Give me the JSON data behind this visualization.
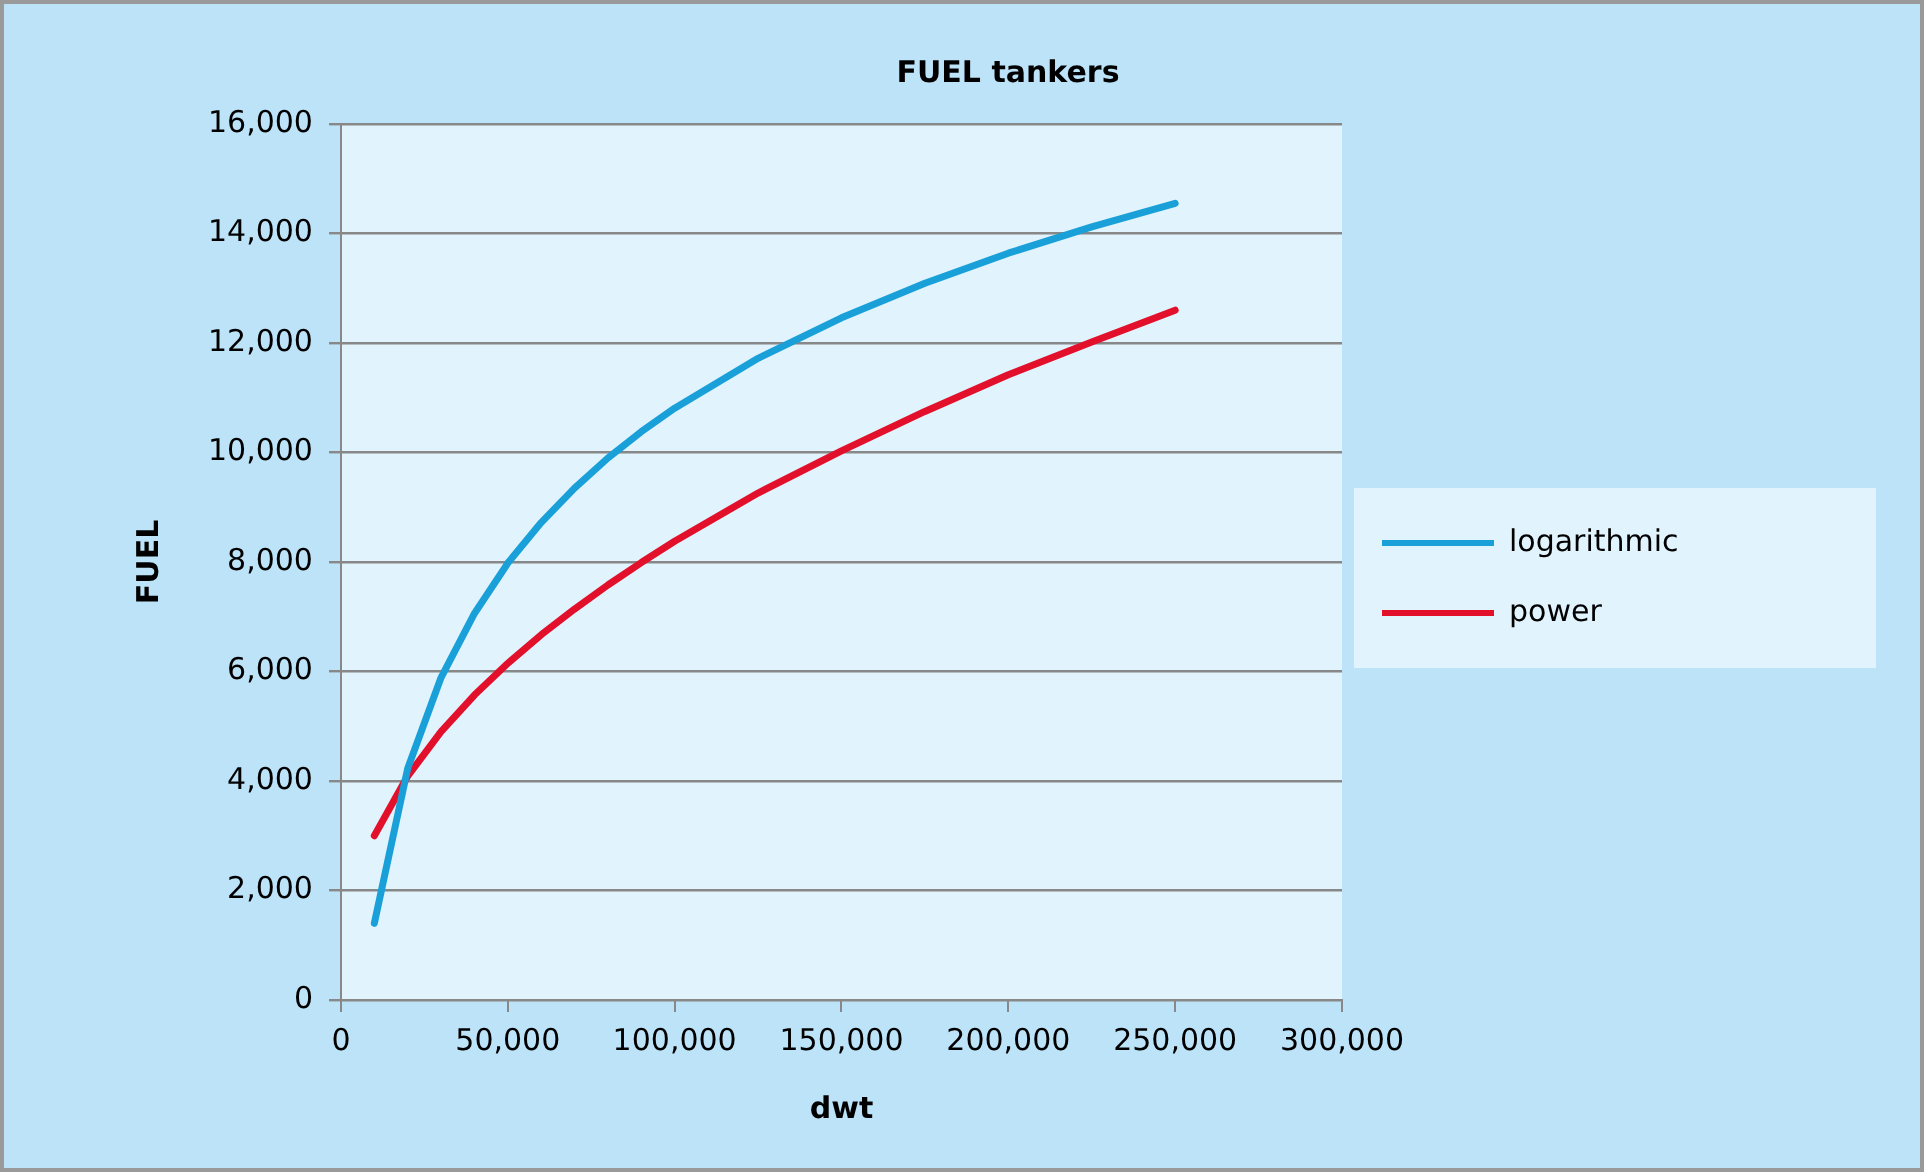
{
  "chart_data": {
    "type": "line",
    "title": "FUEL tankers",
    "xlabel": "dwt",
    "ylabel": "FUEL",
    "x": [
      10000,
      20000,
      30000,
      40000,
      50000,
      60000,
      70000,
      80000,
      90000,
      100000,
      125000,
      150000,
      175000,
      200000,
      225000,
      250000
    ],
    "series": [
      {
        "name": "logarithmic",
        "color": "#1aa0d8",
        "values": [
          1400,
          4230,
          5890,
          7060,
          7980,
          8720,
          9350,
          9900,
          10380,
          10810,
          11720,
          12460,
          13090,
          13640,
          14120,
          14550
        ]
      },
      {
        "name": "power",
        "color": "#e3102b",
        "values": [
          3000,
          4090,
          4900,
          5570,
          6150,
          6670,
          7140,
          7580,
          7990,
          8380,
          9260,
          10030,
          10750,
          11420,
          12020,
          12600
        ]
      }
    ],
    "xlim": [
      0,
      300000
    ],
    "xticks": [
      0,
      {
        "value": 50000,
        "label": "50,000"
      },
      {
        "value": 100000,
        "label": "100,000"
      },
      {
        "value": 150000,
        "label": "150,000"
      },
      {
        "value": 200000,
        "label": "200,000"
      },
      {
        "value": 250000,
        "label": "250,000"
      },
      {
        "value": 300000,
        "label": "300,000"
      }
    ],
    "ylim": [
      0,
      16000
    ],
    "yticks": [
      0,
      {
        "value": 2000,
        "label": "2,000"
      },
      {
        "value": 4000,
        "label": "4,000"
      },
      {
        "value": 6000,
        "label": "6,000"
      },
      {
        "value": 8000,
        "label": "8,000"
      },
      {
        "value": 10000,
        "label": "10,000"
      },
      {
        "value": 12000,
        "label": "12,000"
      },
      {
        "value": 14000,
        "label": "14,000"
      },
      {
        "value": 16000,
        "label": "16,000"
      }
    ],
    "grid": "y",
    "legend": "right",
    "marker": "none",
    "line_style": "solid"
  }
}
